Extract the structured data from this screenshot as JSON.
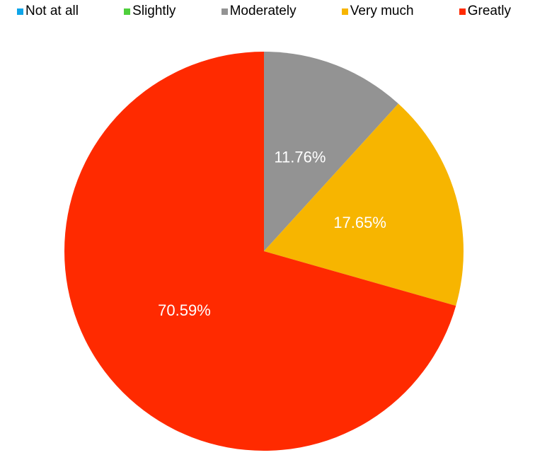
{
  "chart_data": {
    "type": "pie",
    "categories": [
      "Not at all",
      "Slightly",
      "Moderately",
      "Very much",
      "Greatly"
    ],
    "values": [
      0,
      0,
      11.76,
      17.65,
      70.59
    ],
    "value_labels": [
      null,
      null,
      "11.76%",
      "17.65%",
      "70.59%"
    ],
    "colors": [
      "#0ea5e9",
      "#4fcf3c",
      "#939393",
      "#f7b500",
      "#ff2a00"
    ],
    "legend": "top"
  }
}
